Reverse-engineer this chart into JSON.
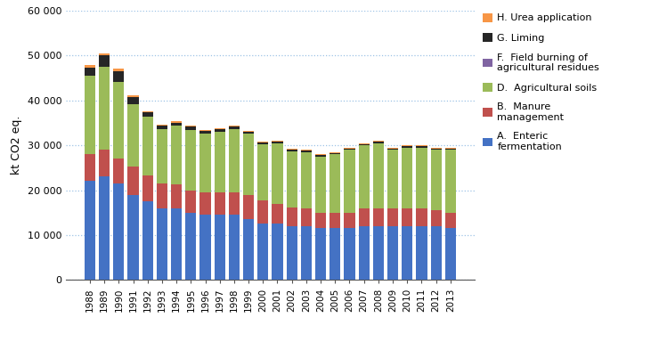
{
  "years": [
    1988,
    1989,
    1990,
    1991,
    1992,
    1993,
    1994,
    1995,
    1996,
    1997,
    1998,
    1999,
    2000,
    2001,
    2002,
    2003,
    2004,
    2005,
    2006,
    2007,
    2008,
    2009,
    2010,
    2011,
    2012,
    2013
  ],
  "A_enteric": [
    22000,
    23000,
    21500,
    19000,
    17500,
    16000,
    16000,
    15000,
    14500,
    14500,
    14500,
    13500,
    12500,
    12500,
    12000,
    12000,
    11500,
    11500,
    11500,
    12000,
    12000,
    12000,
    12000,
    12000,
    12000,
    11500
  ],
  "B_manure": [
    6000,
    6000,
    5500,
    6200,
    5800,
    5500,
    5300,
    4900,
    5000,
    5000,
    5000,
    5500,
    5200,
    4500,
    4200,
    4000,
    3500,
    3500,
    3500,
    4000,
    4000,
    4000,
    4000,
    4000,
    3500,
    3500
  ],
  "D_agsoils": [
    17500,
    18500,
    17000,
    14000,
    13000,
    12000,
    13000,
    13500,
    13000,
    13500,
    14000,
    13500,
    12500,
    13500,
    12500,
    12500,
    12500,
    13000,
    14000,
    14000,
    14500,
    13000,
    13500,
    13500,
    13500,
    14000
  ],
  "F_field": [
    0,
    0,
    0,
    0,
    0,
    0,
    0,
    0,
    0,
    0,
    0,
    0,
    0,
    0,
    0,
    0,
    0,
    0,
    0,
    0,
    0,
    0,
    0,
    0,
    0,
    0
  ],
  "G_liming": [
    1800,
    2500,
    2500,
    1500,
    1000,
    800,
    700,
    700,
    600,
    600,
    600,
    500,
    500,
    400,
    300,
    300,
    300,
    300,
    300,
    300,
    300,
    300,
    300,
    300,
    300,
    300
  ],
  "H_urea": [
    500,
    500,
    500,
    400,
    300,
    300,
    300,
    200,
    200,
    200,
    200,
    200,
    200,
    200,
    200,
    200,
    200,
    200,
    200,
    200,
    200,
    200,
    200,
    200,
    200,
    200
  ],
  "colors": {
    "A": "#4472C4",
    "B": "#C0504D",
    "D": "#9BBB59",
    "F": "#8064A2",
    "G": "#262626",
    "H": "#F79646"
  },
  "ylabel": "kt CO2 eq.",
  "ylim": [
    0,
    60000
  ],
  "yticks": [
    0,
    10000,
    20000,
    30000,
    40000,
    50000,
    60000
  ],
  "ytick_labels": [
    "0",
    "10 000",
    "20 000",
    "30 000",
    "40 000",
    "50 000",
    "60 000"
  ],
  "legend_labels": [
    "H. Urea application",
    "G. Liming",
    "F.  Field burning of\nagricultural residues",
    "D.  Agricultural soils",
    "B.  Manure\nmanagement",
    "A.  Enteric\nfermentation"
  ],
  "grid_color": "#9DC3E6",
  "background_color": "#FFFFFF"
}
